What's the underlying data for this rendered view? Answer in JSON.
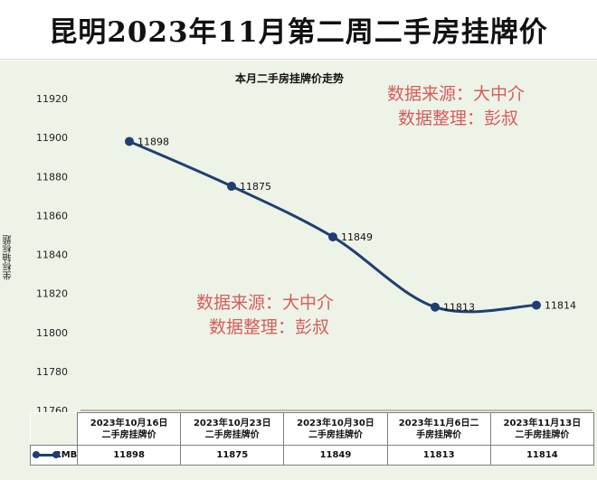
{
  "banner": {
    "title": "昆明2023年11月第二周二手房挂牌价"
  },
  "watermark": {
    "line1": "数据来源：大中介",
    "line2": "数据整理：彭叔"
  },
  "chart_data": {
    "type": "line",
    "title": "本月二手房挂牌价走势",
    "ylabel": "坐标轴标题",
    "xlabel": "",
    "ylim": [
      11760,
      11920
    ],
    "yticks": [
      11760,
      11780,
      11800,
      11820,
      11840,
      11860,
      11880,
      11900,
      11920
    ],
    "categories": [
      "2023年10月16日二手房挂牌价",
      "2023年10月23日二手房挂牌价",
      "2023年10月30日二手房挂牌价",
      "2023年11月6日二手房挂牌价",
      "2023年11月13日二手房挂牌价"
    ],
    "category_lines": [
      [
        "2023年10月16日",
        "二手房挂牌价"
      ],
      [
        "2023年10月23日",
        "二手房挂牌价"
      ],
      [
        "2023年10月30日",
        "二手房挂牌价"
      ],
      [
        "2023年11月6日二",
        "手房挂牌价"
      ],
      [
        "2023年11月13日",
        "二手房挂牌价"
      ]
    ],
    "series": [
      {
        "name": "RMB",
        "values": [
          11898,
          11875,
          11849,
          11813,
          11814
        ],
        "color": "#1f3f73"
      }
    ],
    "data_labels": true,
    "grid": false,
    "legend": "data-table"
  }
}
